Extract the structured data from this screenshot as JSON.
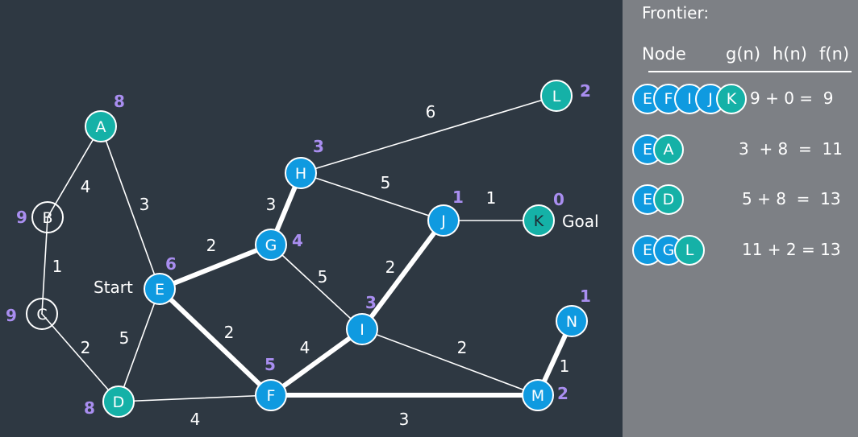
{
  "colors": {
    "background": "#2e3842",
    "panel": "#7d8085",
    "node_blue": "#0f9ae0",
    "node_teal": "#15b1a7",
    "heuristic": "#a98ef0",
    "edge": "#ffffff"
  },
  "graph": {
    "nodes": [
      {
        "id": "A",
        "label": "A",
        "h": "8",
        "fill": "teal"
      },
      {
        "id": "B",
        "label": "B",
        "h": "9",
        "fill": "none"
      },
      {
        "id": "C",
        "label": "C",
        "h": "9",
        "fill": "none"
      },
      {
        "id": "D",
        "label": "D",
        "h": "8",
        "fill": "teal"
      },
      {
        "id": "E",
        "label": "E",
        "h": "6",
        "fill": "blue"
      },
      {
        "id": "F",
        "label": "F",
        "h": "5",
        "fill": "blue"
      },
      {
        "id": "G",
        "label": "G",
        "h": "4",
        "fill": "blue"
      },
      {
        "id": "H",
        "label": "H",
        "h": "3",
        "fill": "blue"
      },
      {
        "id": "I",
        "label": "I",
        "h": "3",
        "fill": "blue"
      },
      {
        "id": "J",
        "label": "J",
        "h": "1",
        "fill": "blue"
      },
      {
        "id": "K",
        "label": "K",
        "h": "0",
        "fill": "teal"
      },
      {
        "id": "L",
        "label": "L",
        "h": "2",
        "fill": "teal"
      },
      {
        "id": "M",
        "label": "M",
        "h": "2",
        "fill": "blue"
      },
      {
        "id": "N",
        "label": "N",
        "h": "1",
        "fill": "blue"
      }
    ],
    "edges": [
      {
        "from": "A",
        "to": "B",
        "weight": "4",
        "bold": false
      },
      {
        "from": "A",
        "to": "E",
        "weight": "3",
        "bold": false
      },
      {
        "from": "B",
        "to": "C",
        "weight": "1",
        "bold": false
      },
      {
        "from": "C",
        "to": "D",
        "weight": "2",
        "bold": false
      },
      {
        "from": "D",
        "to": "E",
        "weight": "5",
        "bold": false
      },
      {
        "from": "D",
        "to": "F",
        "weight": "4",
        "bold": false
      },
      {
        "from": "E",
        "to": "G",
        "weight": "2",
        "bold": true
      },
      {
        "from": "E",
        "to": "F",
        "weight": "2",
        "bold": true
      },
      {
        "from": "G",
        "to": "H",
        "weight": "3",
        "bold": true
      },
      {
        "from": "G",
        "to": "I",
        "weight": "5",
        "bold": false
      },
      {
        "from": "H",
        "to": "L",
        "weight": "6",
        "bold": false
      },
      {
        "from": "H",
        "to": "J",
        "weight": "5",
        "bold": false
      },
      {
        "from": "F",
        "to": "I",
        "weight": "4",
        "bold": true
      },
      {
        "from": "I",
        "to": "J",
        "weight": "2",
        "bold": true
      },
      {
        "from": "J",
        "to": "K",
        "weight": "1",
        "bold": false
      },
      {
        "from": "I",
        "to": "M",
        "weight": "2",
        "bold": false
      },
      {
        "from": "F",
        "to": "M",
        "weight": "3",
        "bold": true
      },
      {
        "from": "M",
        "to": "N",
        "weight": "1",
        "bold": true
      }
    ],
    "start_label": "Start",
    "goal_label": "Goal"
  },
  "panel": {
    "title": "Frontier:",
    "headers": {
      "node": "Node",
      "g": "g(n)",
      "h": "h(n)",
      "f": "f(n)"
    },
    "rows": [
      {
        "path": [
          "E",
          "F",
          "I",
          "J",
          "K"
        ],
        "fills": [
          "blue",
          "blue",
          "blue",
          "blue",
          "teal"
        ],
        "calc": "9 + 0 =  9"
      },
      {
        "path": [
          "E",
          "A"
        ],
        "fills": [
          "blue",
          "teal"
        ],
        "calc": "3  + 8  =  11"
      },
      {
        "path": [
          "E",
          "D"
        ],
        "fills": [
          "blue",
          "teal"
        ],
        "calc": "5 + 8  =  13"
      },
      {
        "path": [
          "E",
          "G",
          "L"
        ],
        "fills": [
          "blue",
          "blue",
          "teal"
        ],
        "calc": "11 + 2 = 13"
      }
    ]
  }
}
